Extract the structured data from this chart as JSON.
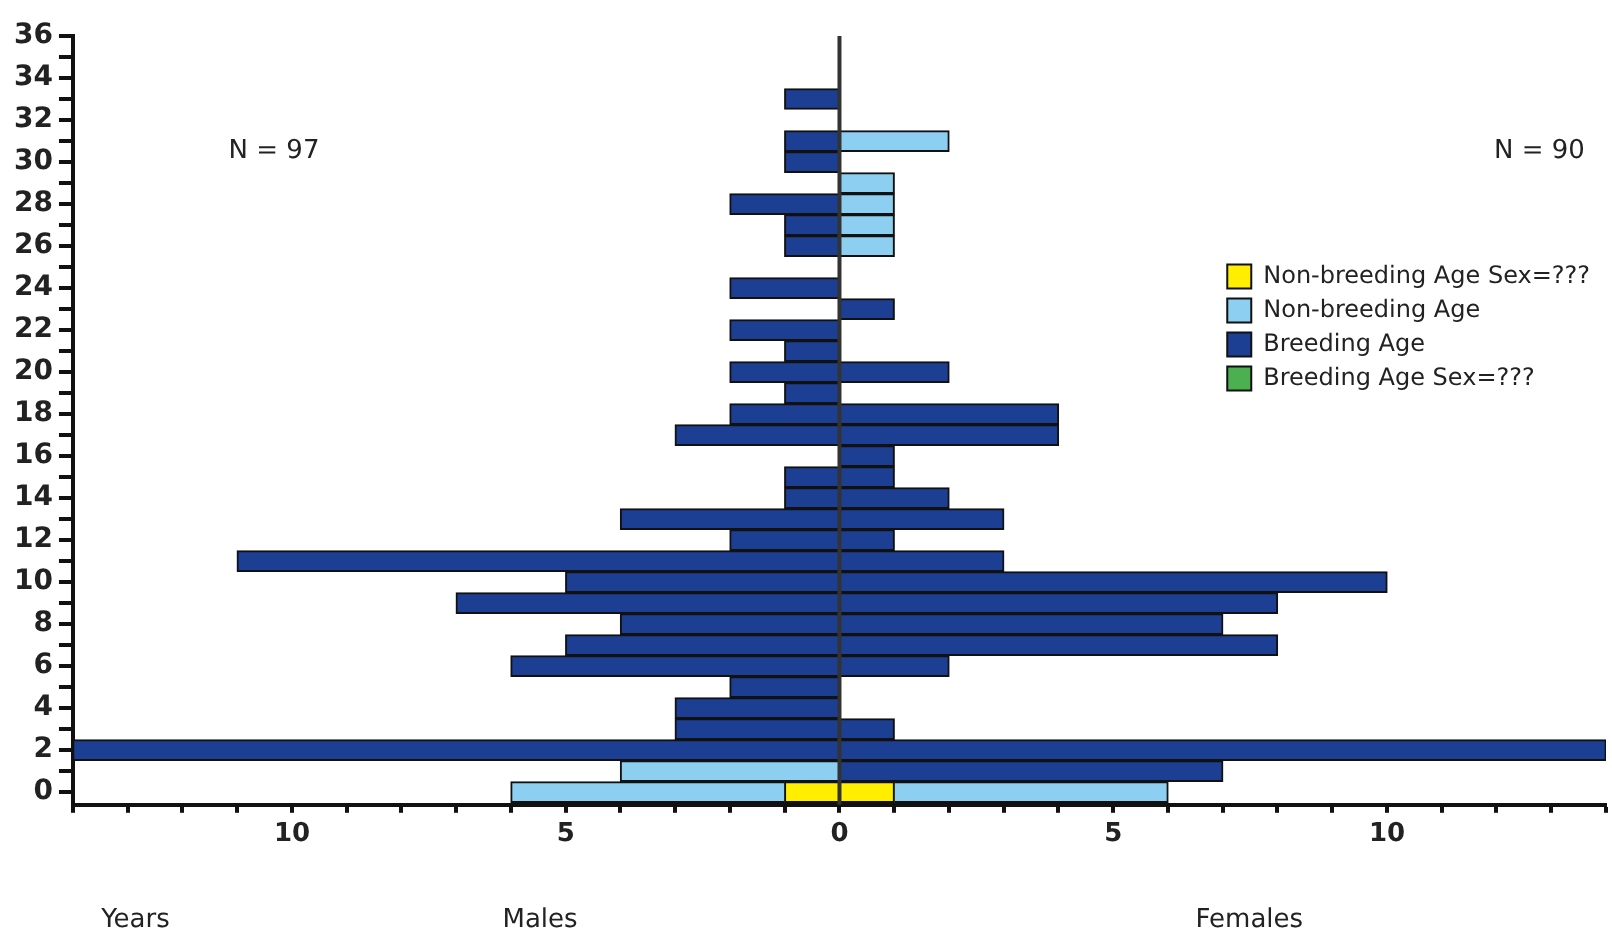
{
  "chart_data": {
    "type": "bar",
    "orientation": "horizontal",
    "stacked": true,
    "annotations": [
      "N = 97",
      "N = 90",
      "Years",
      "Males",
      "Females"
    ],
    "x": [
      0,
      1,
      2,
      3,
      4,
      5,
      6,
      7,
      8,
      9,
      10,
      11,
      12,
      13,
      14,
      15,
      16,
      17,
      18,
      19,
      20,
      21,
      22,
      23,
      24,
      25,
      26,
      27,
      28,
      29,
      30,
      31,
      32,
      33
    ],
    "series": [
      {
        "color": "#ffee00",
        "values": [
          -1,
          null,
          null,
          null,
          null,
          null,
          null,
          null,
          null,
          null,
          null,
          null,
          null,
          null,
          null,
          null,
          null,
          null,
          null,
          null,
          null,
          null,
          null,
          null,
          null,
          null,
          null,
          null,
          null,
          null,
          null,
          null,
          null,
          null
        ]
      },
      {
        "name": "Non-breeding Age Sex=???",
        "color": "#ffee00",
        "values": [
          1,
          null,
          null,
          null,
          null,
          null,
          null,
          null,
          null,
          null,
          null,
          null,
          null,
          null,
          null,
          null,
          null,
          null,
          null,
          null,
          null,
          null,
          null,
          null,
          null,
          null,
          null,
          null,
          null,
          null,
          null,
          null,
          null,
          null
        ]
      },
      {
        "color": "#8ccff0",
        "values": [
          -5,
          -4,
          null,
          null,
          null,
          null,
          null,
          null,
          null,
          null,
          null,
          null,
          null,
          null,
          null,
          null,
          null,
          null,
          null,
          null,
          null,
          null,
          null,
          null,
          null,
          null,
          null,
          null,
          null,
          null,
          null,
          null,
          null,
          null
        ]
      },
      {
        "name": "Non-breeding Age",
        "color": "#8ccff0",
        "values": [
          5,
          null,
          null,
          null,
          null,
          null,
          null,
          null,
          null,
          null,
          null,
          null,
          null,
          null,
          null,
          null,
          null,
          null,
          null,
          null,
          null,
          null,
          null,
          null,
          null,
          null,
          1,
          1,
          1,
          1,
          null,
          2,
          null,
          null
        ]
      },
      {
        "color": "#1c3f94",
        "values": [
          null,
          null,
          -14,
          -3,
          -3,
          -2,
          -6,
          -5,
          -4,
          -7,
          -5,
          -11,
          -2,
          -4,
          -1,
          -1,
          null,
          -3,
          -2,
          -1,
          -2,
          -1,
          -2,
          null,
          -2,
          null,
          -1,
          -1,
          -2,
          null,
          -1,
          -1,
          null,
          -1
        ]
      },
      {
        "name": "Breeding Age",
        "color": "#1c3f94",
        "values": [
          null,
          7,
          14,
          1,
          null,
          null,
          2,
          8,
          7,
          8,
          10,
          3,
          1,
          3,
          2,
          1,
          1,
          4,
          4,
          null,
          2,
          null,
          null,
          1,
          null,
          null,
          null,
          null,
          null,
          null,
          null,
          null,
          null,
          null
        ]
      },
      {
        "name": "Breeding Age Sex=???",
        "color": "#4caf50",
        "values": [
          null,
          null,
          null,
          null,
          null,
          null,
          null,
          null,
          null,
          null,
          null,
          null,
          null,
          null,
          null,
          null,
          null,
          null,
          null,
          null,
          null,
          null,
          null,
          null,
          null,
          null,
          null,
          null,
          null,
          null,
          null,
          null,
          null,
          null
        ]
      }
    ],
    "xlim": [
      -14,
      14
    ],
    "xticks": [
      {
        "value": -14,
        "label": null
      },
      {
        "value": -13,
        "label": null
      },
      {
        "value": -12,
        "label": null
      },
      {
        "value": -11,
        "label": null
      },
      {
        "value": -10,
        "label": "10"
      },
      {
        "value": -9,
        "label": null
      },
      {
        "value": -8,
        "label": null
      },
      {
        "value": -7,
        "label": null
      },
      {
        "value": -6,
        "label": null
      },
      {
        "value": -5,
        "label": "5"
      },
      {
        "value": -4,
        "label": null
      },
      {
        "value": -3,
        "label": null
      },
      {
        "value": -2,
        "label": null
      },
      {
        "value": -1,
        "label": null
      },
      0,
      {
        "value": 1,
        "label": null
      },
      {
        "value": 2,
        "label": null
      },
      {
        "value": 3,
        "label": null
      },
      {
        "value": 4,
        "label": null
      },
      5,
      {
        "value": 6,
        "label": null
      },
      {
        "value": 7,
        "label": null
      },
      {
        "value": 8,
        "label": null
      },
      {
        "value": 9,
        "label": null
      },
      10,
      {
        "value": 11,
        "label": null
      },
      {
        "value": 12,
        "label": null
      },
      {
        "value": 13,
        "label": null
      },
      {
        "value": 14,
        "label": null
      }
    ],
    "ylim": [
      -0.6,
      36
    ],
    "yticks": [
      0,
      {
        "value": 1,
        "label": null
      },
      2,
      {
        "value": 3,
        "label": null
      },
      4,
      {
        "value": 5,
        "label": null
      },
      6,
      {
        "value": 7,
        "label": null
      },
      8,
      {
        "value": 9,
        "label": null
      },
      10,
      {
        "value": 11,
        "label": null
      },
      12,
      {
        "value": 13,
        "label": null
      },
      14,
      {
        "value": 15,
        "label": null
      },
      16,
      {
        "value": 17,
        "label": null
      },
      18,
      {
        "value": 19,
        "label": null
      },
      20,
      {
        "value": 21,
        "label": null
      },
      22,
      {
        "value": 23,
        "label": null
      },
      24,
      {
        "value": 25,
        "label": null
      },
      26,
      {
        "value": 27,
        "label": null
      },
      28,
      {
        "value": 29,
        "label": null
      },
      30,
      {
        "value": 31,
        "label": null
      },
      32,
      {
        "value": 33,
        "label": null
      },
      34,
      {
        "value": 35,
        "label": null
      },
      36
    ],
    "ref_lines": [
      {
        "axis": "x",
        "value": 0,
        "color": "#333333"
      }
    ],
    "legend": "right",
    "grid": false
  }
}
